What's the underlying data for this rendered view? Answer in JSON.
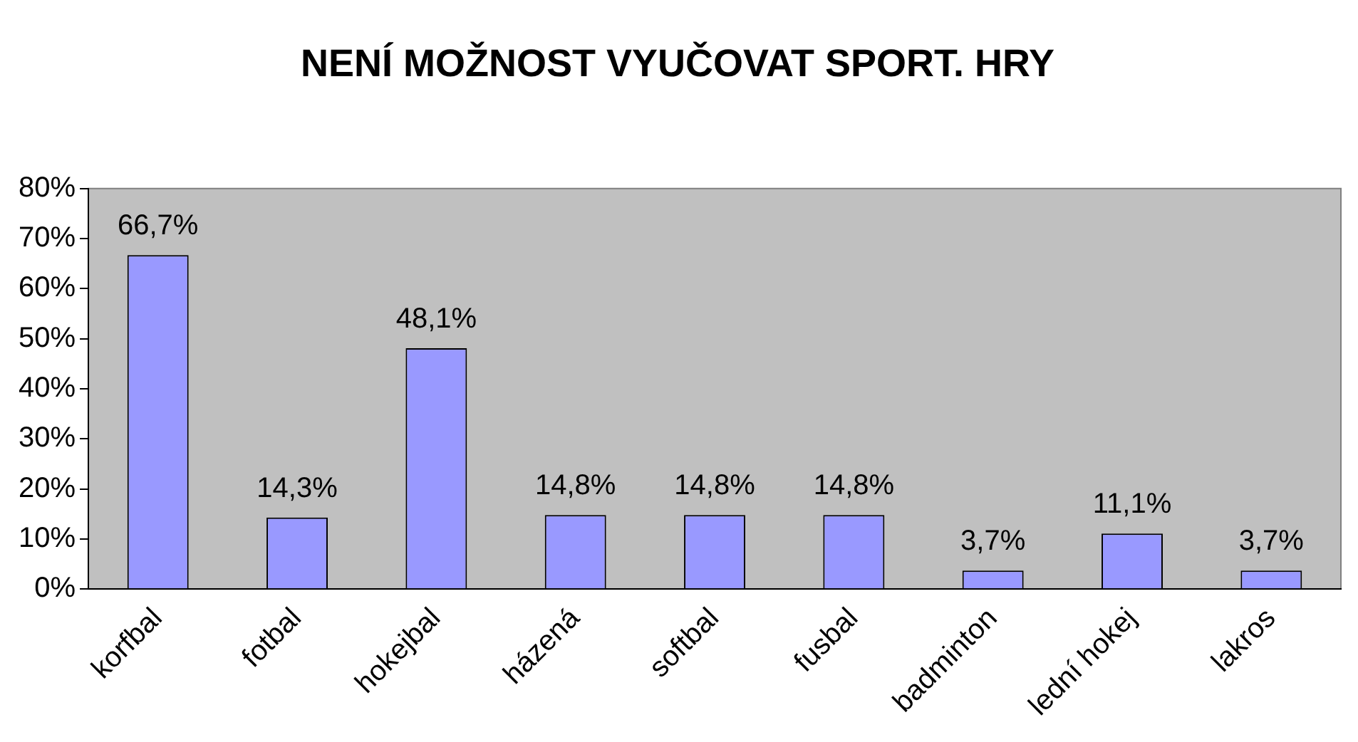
{
  "chart_data": {
    "type": "bar",
    "title": "NENÍ MOŽNOST VYUČOVAT SPORT. HRY",
    "categories": [
      "korfbal",
      "fotbal",
      "hokejbal",
      "házená",
      "softbal",
      "fusbal",
      "badminton",
      "lední hokej",
      "lakros"
    ],
    "values": [
      66.7,
      14.3,
      48.1,
      14.8,
      14.8,
      14.8,
      3.7,
      11.1,
      3.7
    ],
    "value_labels": [
      "66,7%",
      "14,3%",
      "48,1%",
      "14,8%",
      "14,8%",
      "14,8%",
      "3,7%",
      "11,1%",
      "3,7%"
    ],
    "color": "#9999ff",
    "ylim": [
      0,
      80
    ],
    "yticks": [
      {
        "value": 0,
        "label": "0%"
      },
      {
        "value": 10,
        "label": "10%"
      },
      {
        "value": 20,
        "label": "20%"
      },
      {
        "value": 30,
        "label": "30%"
      },
      {
        "value": 40,
        "label": "40%"
      },
      {
        "value": 50,
        "label": "50%"
      },
      {
        "value": 60,
        "label": "60%"
      },
      {
        "value": 70,
        "label": "70%"
      },
      {
        "value": 80,
        "label": "80%"
      }
    ],
    "grid": false,
    "legend": false
  }
}
